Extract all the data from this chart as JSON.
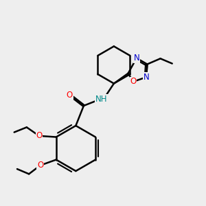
{
  "bg_color": "#eeeeee",
  "bond_color": "#000000",
  "bond_width": 1.8,
  "atom_colors": {
    "O": "#ff0000",
    "N": "#0000cc",
    "H": "#008888",
    "C": "#000000"
  },
  "font_size": 8.5
}
